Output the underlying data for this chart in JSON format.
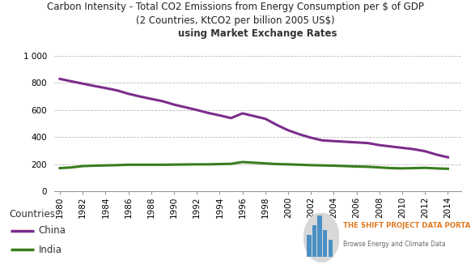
{
  "title_line1": "Carbon Intensity - Total CO2 Emissions from Energy Consumption per $ of GDP",
  "title_line2": "(2 Countries, KtCO2 per billion 2005 US$)",
  "subtitle": "using Market Exchange Rates",
  "years": [
    1980,
    1981,
    1982,
    1983,
    1984,
    1985,
    1986,
    1987,
    1988,
    1989,
    1990,
    1991,
    1992,
    1993,
    1994,
    1995,
    1996,
    1997,
    1998,
    1999,
    2000,
    2001,
    2002,
    2003,
    2004,
    2005,
    2006,
    2007,
    2008,
    2009,
    2010,
    2011,
    2012,
    2013,
    2014
  ],
  "china": [
    830,
    812,
    795,
    778,
    762,
    745,
    720,
    700,
    682,
    665,
    640,
    620,
    600,
    578,
    560,
    540,
    575,
    555,
    535,
    490,
    450,
    420,
    395,
    375,
    370,
    365,
    360,
    355,
    340,
    330,
    320,
    310,
    295,
    270,
    250
  ],
  "india": [
    170,
    175,
    185,
    188,
    190,
    192,
    195,
    195,
    195,
    195,
    196,
    197,
    198,
    198,
    200,
    202,
    215,
    210,
    205,
    200,
    198,
    195,
    192,
    190,
    188,
    185,
    182,
    180,
    175,
    170,
    168,
    170,
    172,
    168,
    165
  ],
  "china_color": "#7B2D8B",
  "india_color": "#3A7D1E",
  "bg_color": "#ffffff",
  "grid_color": "#bbbbbb",
  "yticks": [
    0,
    200,
    400,
    600,
    800,
    1000
  ],
  "ytick_labels": [
    "0",
    "200",
    "400",
    "600",
    "800",
    "1 000"
  ],
  "xtick_years": [
    1980,
    1982,
    1984,
    1986,
    1988,
    1990,
    1992,
    1994,
    1996,
    1998,
    2000,
    2002,
    2004,
    2006,
    2008,
    2010,
    2012,
    2014
  ],
  "legend_title": "Countries",
  "legend_china": "China",
  "legend_india": "India",
  "portal_text1": "THE SHIFT PROJECT DATA PORTAL",
  "portal_text2": "Browse Energy and Climate Data",
  "title_fontsize": 8.5,
  "subtitle_fontsize": 8.5,
  "axis_fontsize": 7.5,
  "legend_fontsize": 8.5,
  "line_width": 2.2
}
